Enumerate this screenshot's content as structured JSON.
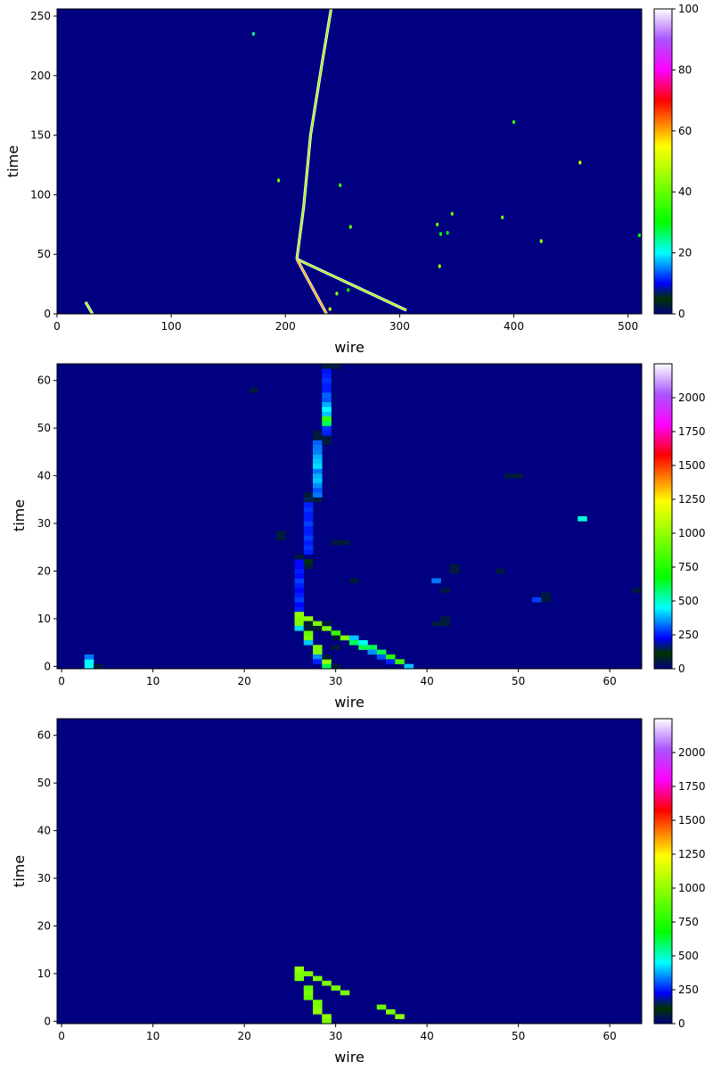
{
  "chart_data": [
    {
      "type": "heatmap",
      "xlabel": "wire",
      "ylabel": "time",
      "xlim": [
        0,
        512
      ],
      "ylim": [
        0,
        256
      ],
      "xticks": [
        0,
        100,
        200,
        300,
        400,
        500
      ],
      "yticks": [
        0,
        50,
        100,
        150,
        200,
        250
      ],
      "colorbar": {
        "min": 0,
        "max": 100,
        "ticks": [
          0,
          20,
          40,
          60,
          80,
          100
        ]
      },
      "background_value": 0,
      "tracks": [
        {
          "points": [
            [
              210,
              46
            ],
            [
              216,
              90
            ],
            [
              222,
              150
            ],
            [
              232,
              210
            ],
            [
              240,
              256
            ]
          ],
          "value": 45
        },
        {
          "points": [
            [
              210,
              46
            ],
            [
              306,
              3
            ]
          ],
          "value": 45
        },
        {
          "points": [
            [
              210,
              46
            ],
            [
              236,
              0
            ]
          ],
          "value": 60
        },
        {
          "points": [
            [
              25,
              10
            ],
            [
              31,
              0
            ]
          ],
          "value": 45
        }
      ],
      "blobs": [
        [
          172,
          235,
          25
        ],
        [
          194,
          112,
          40
        ],
        [
          248,
          108,
          35
        ],
        [
          257,
          73,
          40
        ],
        [
          245,
          17,
          45
        ],
        [
          333,
          75,
          40
        ],
        [
          336,
          67,
          30
        ],
        [
          346,
          84,
          40
        ],
        [
          342,
          68,
          30
        ],
        [
          335,
          40,
          45
        ],
        [
          390,
          81,
          40
        ],
        [
          400,
          161,
          35
        ],
        [
          424,
          61,
          45
        ],
        [
          458,
          127,
          50
        ],
        [
          510,
          66,
          30
        ],
        [
          255,
          20,
          30
        ],
        [
          239,
          4,
          50
        ]
      ]
    },
    {
      "type": "heatmap",
      "xlabel": "wire",
      "ylabel": "time",
      "xlim": [
        0,
        64
      ],
      "ylim": [
        0,
        64
      ],
      "xticks": [
        0,
        10,
        20,
        30,
        40,
        50,
        60
      ],
      "yticks": [
        0,
        10,
        20,
        30,
        40,
        50,
        60
      ],
      "colorbar": {
        "min": 0,
        "max": 2250,
        "ticks": [
          0,
          250,
          500,
          750,
          1000,
          1250,
          1500,
          1750,
          2000
        ]
      },
      "background_value": 0,
      "cells": [
        [
          3,
          0,
          450
        ],
        [
          3,
          1,
          450
        ],
        [
          3,
          2,
          330
        ],
        [
          4,
          0,
          60
        ],
        [
          26,
          9,
          950
        ],
        [
          26,
          10,
          950
        ],
        [
          26,
          11,
          1000
        ],
        [
          26,
          8,
          420
        ],
        [
          26,
          12,
          250
        ],
        [
          26,
          13,
          230
        ],
        [
          26,
          14,
          280
        ],
        [
          26,
          15,
          250
        ],
        [
          26,
          16,
          230
        ],
        [
          26,
          17,
          250
        ],
        [
          26,
          18,
          280
        ],
        [
          26,
          19,
          230
        ],
        [
          26,
          20,
          250
        ],
        [
          26,
          21,
          230
        ],
        [
          26,
          22,
          230
        ],
        [
          26,
          23,
          60
        ],
        [
          27,
          10,
          1000
        ],
        [
          27,
          7,
          900
        ],
        [
          27,
          6,
          950
        ],
        [
          27,
          5,
          400
        ],
        [
          27,
          9,
          60
        ],
        [
          27,
          8,
          60
        ],
        [
          27,
          21,
          60
        ],
        [
          27,
          22,
          120
        ],
        [
          27,
          24,
          250
        ],
        [
          27,
          25,
          270
        ],
        [
          27,
          26,
          250
        ],
        [
          27,
          27,
          280
        ],
        [
          27,
          28,
          250
        ],
        [
          27,
          29,
          250
        ],
        [
          27,
          30,
          280
        ],
        [
          27,
          31,
          250
        ],
        [
          27,
          32,
          250
        ],
        [
          27,
          33,
          270
        ],
        [
          27,
          34,
          250
        ],
        [
          27,
          35,
          150
        ],
        [
          27,
          36,
          60
        ],
        [
          28,
          9,
          950
        ],
        [
          28,
          4,
          950
        ],
        [
          28,
          3,
          950
        ],
        [
          28,
          2,
          350
        ],
        [
          28,
          1,
          250
        ],
        [
          28,
          8,
          60
        ],
        [
          28,
          35,
          60
        ],
        [
          28,
          36,
          330
        ],
        [
          28,
          37,
          300
        ],
        [
          28,
          38,
          350
        ],
        [
          28,
          39,
          400
        ],
        [
          28,
          40,
          380
        ],
        [
          28,
          41,
          330
        ],
        [
          28,
          42,
          420
        ],
        [
          28,
          43,
          400
        ],
        [
          28,
          44,
          380
        ],
        [
          28,
          45,
          340
        ],
        [
          28,
          46,
          330
        ],
        [
          28,
          47,
          310
        ],
        [
          28,
          48,
          60
        ],
        [
          28,
          49,
          60
        ],
        [
          29,
          8,
          950
        ],
        [
          29,
          9,
          60
        ],
        [
          29,
          1,
          1000
        ],
        [
          29,
          0,
          600
        ],
        [
          29,
          2,
          60
        ],
        [
          29,
          47,
          60
        ],
        [
          29,
          48,
          60
        ],
        [
          29,
          49,
          250
        ],
        [
          29,
          50,
          270
        ],
        [
          29,
          51,
          600
        ],
        [
          29,
          52,
          800
        ],
        [
          29,
          53,
          400
        ],
        [
          29,
          54,
          450
        ],
        [
          29,
          55,
          380
        ],
        [
          29,
          56,
          300
        ],
        [
          29,
          57,
          310
        ],
        [
          29,
          58,
          250
        ],
        [
          29,
          59,
          250
        ],
        [
          29,
          60,
          270
        ],
        [
          29,
          61,
          250
        ],
        [
          29,
          62,
          240
        ],
        [
          29,
          63,
          60
        ],
        [
          30,
          7,
          800
        ],
        [
          30,
          6,
          60
        ],
        [
          30,
          4,
          60
        ],
        [
          30,
          0,
          60
        ],
        [
          30,
          63,
          60
        ],
        [
          30,
          26,
          60
        ],
        [
          31,
          6,
          950
        ],
        [
          31,
          26,
          60
        ],
        [
          32,
          6,
          400
        ],
        [
          32,
          5,
          600
        ],
        [
          33,
          5,
          450
        ],
        [
          33,
          4,
          600
        ],
        [
          34,
          4,
          600
        ],
        [
          34,
          3,
          350
        ],
        [
          35,
          3,
          600
        ],
        [
          35,
          2,
          300
        ],
        [
          36,
          2,
          750
        ],
        [
          36,
          1,
          250
        ],
        [
          37,
          1,
          800
        ],
        [
          38,
          0,
          400
        ],
        [
          21,
          58,
          60
        ],
        [
          24,
          27,
          60
        ],
        [
          24,
          28,
          60
        ],
        [
          32,
          18,
          60
        ],
        [
          41,
          18,
          330
        ],
        [
          42,
          16,
          60
        ],
        [
          42,
          10,
          60
        ],
        [
          42,
          9,
          60
        ],
        [
          41,
          9,
          60
        ],
        [
          43,
          21,
          60
        ],
        [
          43,
          20,
          60
        ],
        [
          48,
          20,
          60
        ],
        [
          49,
          40,
          60
        ],
        [
          50,
          40,
          60
        ],
        [
          52,
          14,
          280
        ],
        [
          53,
          14,
          60
        ],
        [
          53,
          15,
          60
        ],
        [
          57,
          31,
          480
        ],
        [
          63,
          16,
          60
        ]
      ]
    },
    {
      "type": "heatmap",
      "xlabel": "wire",
      "ylabel": "time",
      "xlim": [
        0,
        64
      ],
      "ylim": [
        0,
        64
      ],
      "xticks": [
        0,
        10,
        20,
        30,
        40,
        50,
        60
      ],
      "yticks": [
        0,
        10,
        20,
        30,
        40,
        50,
        60
      ],
      "colorbar": {
        "min": 0,
        "max": 2250,
        "ticks": [
          0,
          250,
          500,
          750,
          1000,
          1250,
          1500,
          1750,
          2000
        ]
      },
      "background_value": 0,
      "cells": [
        [
          26,
          11,
          1000
        ],
        [
          26,
          10,
          950
        ],
        [
          26,
          9,
          950
        ],
        [
          27,
          10,
          950
        ],
        [
          27,
          7,
          900
        ],
        [
          27,
          6,
          950
        ],
        [
          27,
          5,
          900
        ],
        [
          28,
          9,
          950
        ],
        [
          28,
          4,
          950
        ],
        [
          28,
          3,
          950
        ],
        [
          28,
          2,
          1000
        ],
        [
          29,
          8,
          950
        ],
        [
          29,
          1,
          1000
        ],
        [
          29,
          0,
          950
        ],
        [
          30,
          7,
          950
        ],
        [
          31,
          6,
          950
        ],
        [
          35,
          3,
          900
        ],
        [
          36,
          2,
          950
        ],
        [
          37,
          1,
          1000
        ]
      ]
    }
  ]
}
